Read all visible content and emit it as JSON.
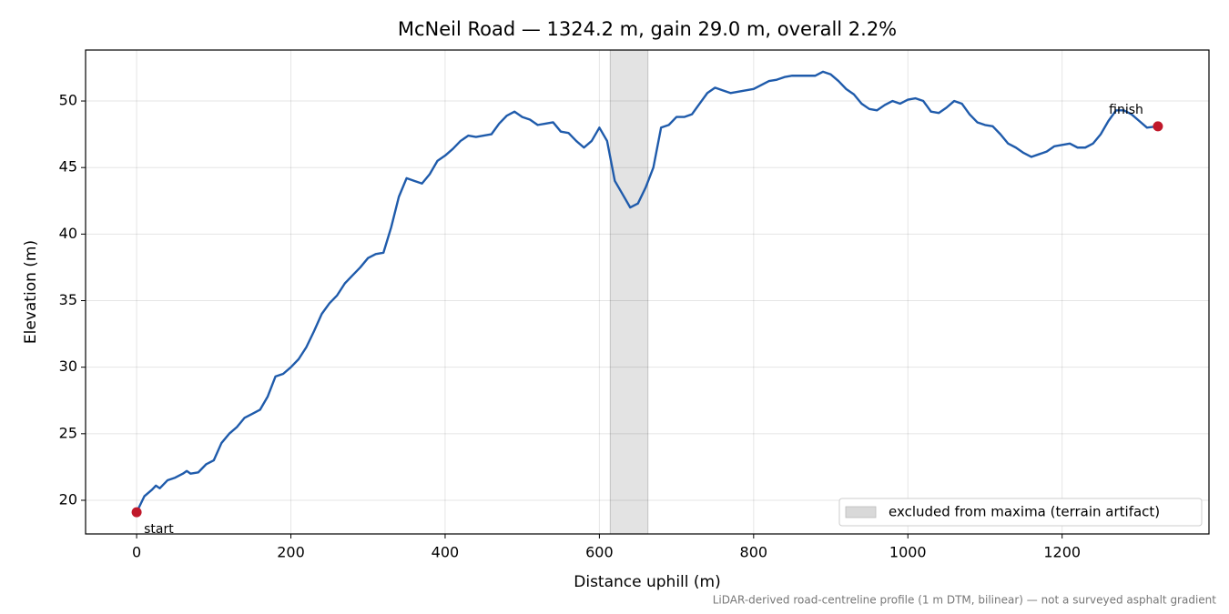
{
  "chart_data": {
    "type": "line",
    "title": "McNeil Road — 1324.2 m, gain 29.0 m, overall 2.2%",
    "xlabel": "Distance uphill (m)",
    "ylabel": "Elevation (m)",
    "footnote": "LiDAR-derived road-centreline profile (1 m DTM, bilinear) — not a surveyed asphalt gradient",
    "x": [
      0,
      10,
      20,
      25,
      30,
      40,
      50,
      60,
      65,
      70,
      80,
      90,
      100,
      110,
      120,
      130,
      140,
      150,
      160,
      170,
      180,
      190,
      200,
      210,
      220,
      230,
      240,
      250,
      260,
      270,
      280,
      290,
      300,
      310,
      320,
      330,
      340,
      350,
      360,
      370,
      380,
      390,
      400,
      410,
      420,
      430,
      440,
      450,
      460,
      470,
      480,
      490,
      500,
      510,
      520,
      530,
      540,
      550,
      560,
      570,
      580,
      590,
      600,
      610,
      620,
      630,
      640,
      650,
      660,
      670,
      680,
      690,
      700,
      710,
      720,
      730,
      740,
      750,
      760,
      770,
      780,
      790,
      800,
      810,
      820,
      830,
      840,
      850,
      860,
      870,
      880,
      890,
      900,
      910,
      920,
      930,
      940,
      950,
      960,
      970,
      980,
      990,
      1000,
      1010,
      1020,
      1030,
      1040,
      1050,
      1060,
      1070,
      1080,
      1090,
      1100,
      1110,
      1120,
      1130,
      1140,
      1150,
      1160,
      1170,
      1180,
      1190,
      1200,
      1210,
      1220,
      1230,
      1240,
      1250,
      1260,
      1270,
      1280,
      1290,
      1300,
      1310,
      1324.2
    ],
    "values": [
      19.1,
      20.3,
      20.8,
      21.1,
      20.9,
      21.5,
      21.7,
      22.0,
      22.2,
      22.0,
      22.1,
      22.7,
      23.0,
      24.3,
      25.0,
      25.5,
      26.2,
      26.5,
      26.8,
      27.8,
      29.3,
      29.5,
      30.0,
      30.6,
      31.5,
      32.7,
      34.0,
      34.8,
      35.4,
      36.3,
      36.9,
      37.5,
      38.2,
      38.5,
      38.6,
      40.5,
      42.8,
      44.2,
      44.0,
      43.8,
      44.5,
      45.5,
      45.9,
      46.4,
      47.0,
      47.4,
      47.3,
      47.4,
      47.5,
      48.3,
      48.9,
      49.2,
      48.8,
      48.6,
      48.2,
      48.3,
      48.4,
      47.7,
      47.6,
      47.0,
      46.5,
      47.0,
      48.0,
      47.0,
      44.0,
      43.0,
      42.0,
      42.3,
      43.5,
      45.0,
      48.0,
      48.2,
      48.8,
      48.8,
      49.0,
      49.8,
      50.6,
      51.0,
      50.8,
      50.6,
      50.7,
      50.8,
      50.9,
      51.2,
      51.5,
      51.6,
      51.8,
      51.9,
      51.9,
      51.9,
      51.9,
      52.2,
      52.0,
      51.5,
      50.9,
      50.5,
      49.8,
      49.4,
      49.3,
      49.7,
      50.0,
      49.8,
      50.1,
      50.2,
      50.0,
      49.2,
      49.1,
      49.5,
      50.0,
      49.8,
      49.0,
      48.4,
      48.2,
      48.1,
      47.5,
      46.8,
      46.5,
      46.1,
      45.8,
      46.0,
      46.2,
      46.6,
      46.7,
      46.8,
      46.5,
      46.5,
      46.8,
      47.5,
      48.5,
      49.3,
      49.3,
      49.0,
      48.5,
      48.0,
      48.1
    ],
    "color": "#1f5bab",
    "start_label": "start",
    "finish_label": "finish",
    "marker_color": "#c0182a",
    "shaded_span": {
      "label": "excluded from maxima (terrain artifact)",
      "range": [
        614,
        663
      ],
      "color": "#d9d9d9"
    },
    "xlim": [
      -66.2,
      1390.4
    ],
    "ylim": [
      17.47,
      53.83
    ],
    "xticks": [
      0,
      200,
      400,
      600,
      800,
      1000,
      1200
    ],
    "yticks": [
      20,
      25,
      30,
      35,
      40,
      45,
      50
    ],
    "grid": true,
    "legend_loc": "lower right"
  }
}
